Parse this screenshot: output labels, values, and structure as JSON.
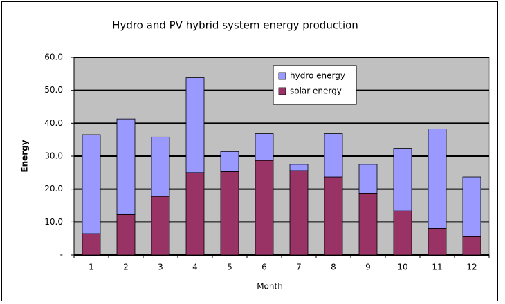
{
  "chart_data": {
    "type": "stacked_bar",
    "title": "Hydro and PV hybrid system energy production",
    "x_label": "Month",
    "y_label": "Energy",
    "categories": [
      "1",
      "2",
      "3",
      "4",
      "5",
      "6",
      "7",
      "8",
      "9",
      "10",
      "11",
      "12"
    ],
    "series": [
      {
        "name": "solar energy",
        "color": "#993366",
        "values": [
          6.5,
          12.3,
          17.8,
          25.0,
          25.3,
          28.7,
          25.6,
          23.7,
          18.6,
          13.4,
          8.1,
          5.6
        ]
      },
      {
        "name": "hydro energy",
        "color": "#9999ff",
        "values": [
          30.0,
          29.0,
          18.0,
          28.8,
          6.1,
          8.1,
          1.9,
          13.1,
          8.9,
          19.0,
          30.2,
          18.1
        ]
      }
    ],
    "ylim": [
      0,
      60
    ],
    "yticks": [
      {
        "value": 0,
        "label": "-"
      },
      {
        "value": 10,
        "label": "10.0"
      },
      {
        "value": 20,
        "label": "20.0"
      },
      {
        "value": 30,
        "label": "30.0"
      },
      {
        "value": 40,
        "label": "40.0"
      },
      {
        "value": 50,
        "label": "50.0"
      },
      {
        "value": 60,
        "label": "60.0"
      }
    ],
    "grid": true,
    "plot_background": "#c0c0c0"
  }
}
